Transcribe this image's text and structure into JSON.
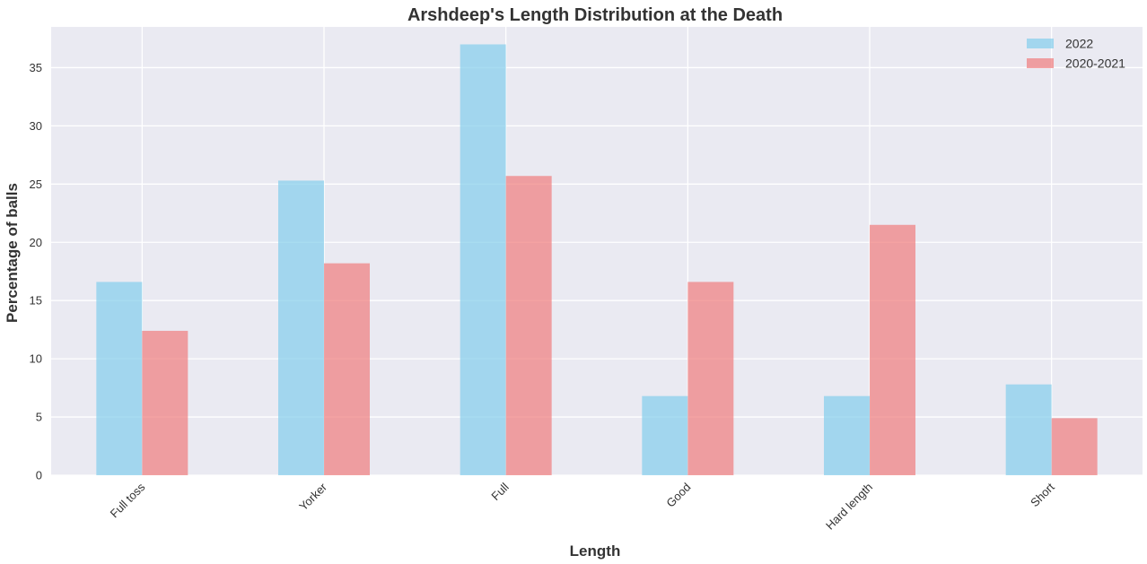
{
  "chart_data": {
    "type": "bar",
    "title": "Arshdeep's Length Distribution at the Death",
    "xlabel": "Length",
    "ylabel": "Percentage of balls",
    "categories": [
      "Full toss",
      "Yorker",
      "Full",
      "Good",
      "Hard length",
      "Short"
    ],
    "series": [
      {
        "name": "2022",
        "values": [
          16.6,
          25.3,
          37.0,
          6.8,
          6.8,
          7.8
        ],
        "color": "#87CEEB"
      },
      {
        "name": "2020-2021",
        "values": [
          12.4,
          18.2,
          25.7,
          16.6,
          21.5,
          4.9
        ],
        "color": "#F08080"
      }
    ],
    "ylim": [
      0,
      38.5
    ],
    "yticks": [
      0,
      5,
      10,
      15,
      20,
      25,
      30,
      35
    ],
    "grid": true,
    "legend_position": "top-right",
    "background_color": "#EAEAF2",
    "grid_color": "#FFFFFF"
  }
}
